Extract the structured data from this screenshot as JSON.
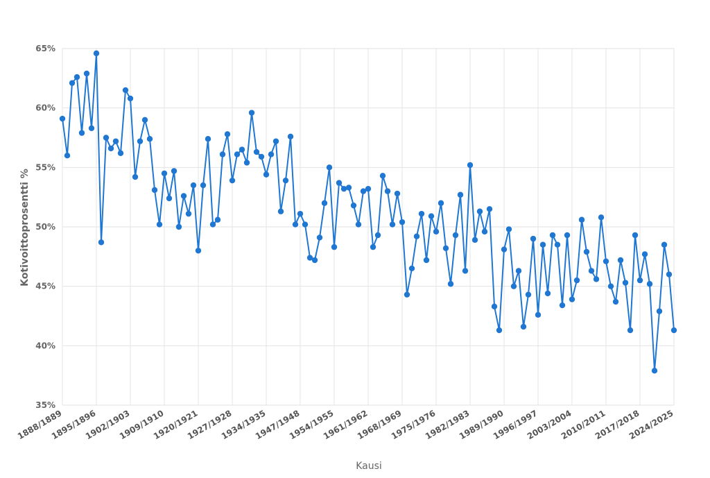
{
  "chart_data": {
    "type": "line",
    "title": "",
    "xlabel": "Kausi",
    "ylabel": "Kotivoittoprosentti %",
    "ylim": [
      35,
      65
    ],
    "y_ticks": [
      "35%",
      "40%",
      "45%",
      "50%",
      "55%",
      "60%",
      "65%"
    ],
    "y_tick_values": [
      35,
      40,
      45,
      50,
      55,
      60,
      65
    ],
    "x_tick_labels": [
      "1888/1889",
      "1895/1896",
      "1902/1903",
      "1909/1910",
      "1920/1921",
      "1927/1928",
      "1934/1935",
      "1947/1948",
      "1954/1955",
      "1961/1962",
      "1968/1969",
      "1975/1976",
      "1982/1983",
      "1989/1990",
      "1996/1997",
      "2003/2004",
      "2010/2011",
      "2017/2018",
      "2024/2025"
    ],
    "grid": true,
    "legend": "none",
    "color": "#1f77d2",
    "series": [
      {
        "values": [
          59.1,
          56.0,
          62.1,
          62.6,
          57.9,
          62.9,
          58.3,
          64.6,
          48.7,
          57.5,
          56.6,
          57.2,
          56.2,
          61.5,
          60.8,
          54.2,
          57.2,
          59.0,
          57.4,
          53.1,
          50.2,
          54.5,
          52.4,
          54.7,
          50.0,
          52.6,
          51.1,
          53.5,
          48.0,
          53.5,
          57.4,
          50.2,
          50.6,
          56.1,
          57.8,
          53.9,
          56.1,
          56.5,
          55.4,
          59.6,
          56.3,
          55.9,
          54.4,
          56.1,
          57.2,
          51.3,
          53.9,
          57.6,
          50.2,
          51.1,
          50.2,
          47.4,
          47.2,
          49.1,
          52.0,
          55.0,
          48.3,
          53.7,
          53.2,
          53.3,
          51.8,
          50.2,
          53.0,
          53.2,
          48.3,
          49.3,
          54.3,
          53.0,
          50.2,
          52.8,
          50.4,
          44.3,
          46.5,
          49.2,
          51.1,
          47.2,
          50.9,
          49.6,
          52.0,
          48.2,
          45.2,
          49.3,
          52.7,
          46.3,
          55.2,
          48.9,
          51.3,
          49.6,
          51.5,
          43.3,
          41.3,
          48.1,
          49.8,
          45.0,
          46.3,
          41.6,
          44.3,
          49.0,
          42.6,
          48.5,
          44.4,
          49.3,
          48.5,
          43.4,
          49.3,
          43.9,
          45.5,
          50.6,
          47.9,
          46.3,
          45.6,
          50.8,
          47.1,
          45.0,
          43.7,
          47.2,
          45.3,
          41.3,
          49.3,
          45.5,
          47.7,
          45.2,
          37.9,
          42.9,
          48.5,
          46.0,
          41.3
        ]
      }
    ]
  }
}
